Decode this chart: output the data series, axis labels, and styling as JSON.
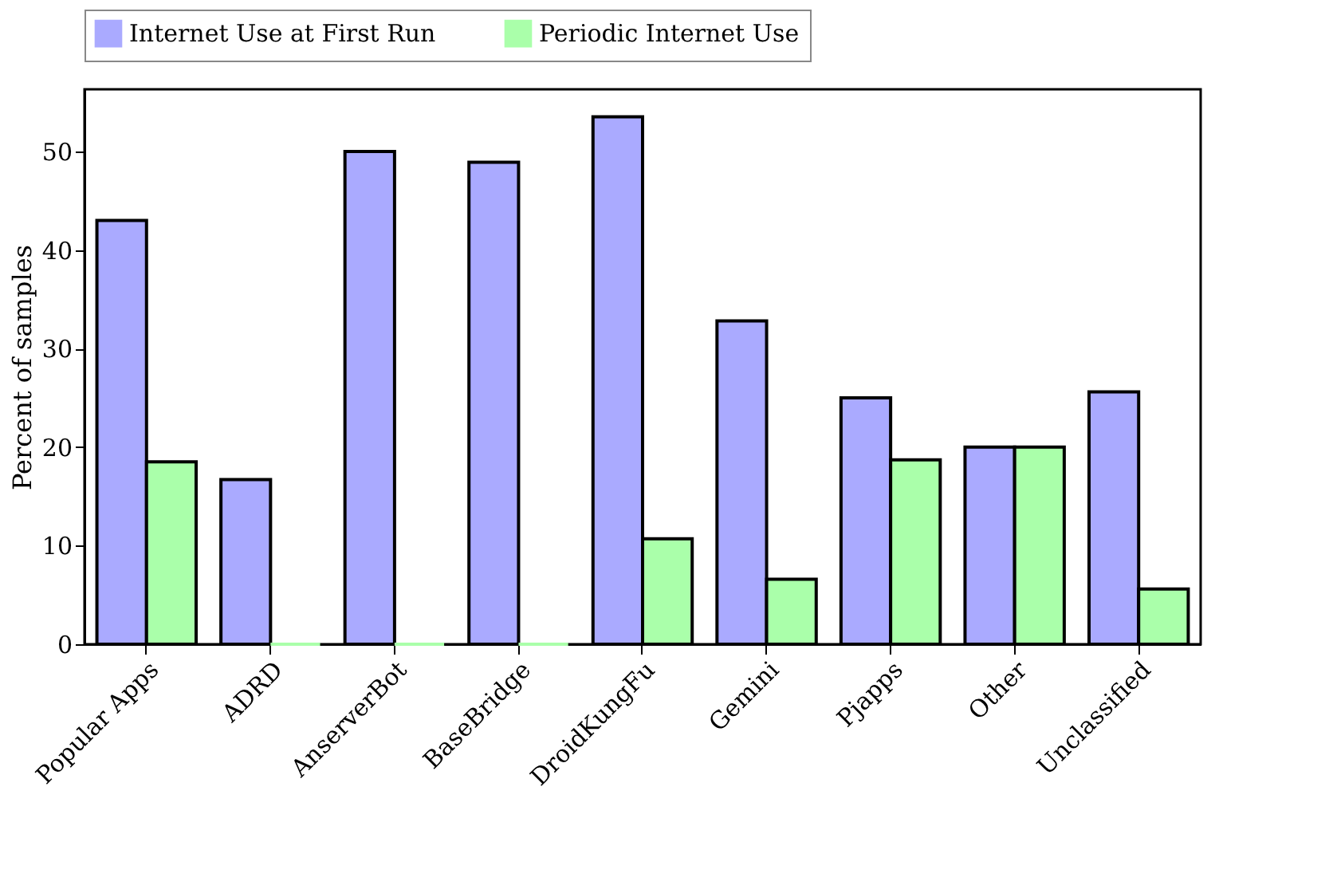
{
  "chart_data": {
    "type": "bar",
    "ylabel": "Percent of samples",
    "categories": [
      "Popular Apps",
      "ADRD",
      "AnserverBot",
      "BaseBridge",
      "DroidKungFu",
      "Gemini",
      "Pjapps",
      "Other",
      "Unclassified"
    ],
    "series": [
      {
        "name": "Internet Use at First Run",
        "color": "#aaaaff",
        "values": [
          43,
          16.7,
          50,
          48.9,
          53.5,
          32.8,
          25,
          20,
          25.6
        ]
      },
      {
        "name": "Periodic Internet Use",
        "color": "#aaffaa",
        "values": [
          18.5,
          0,
          0,
          0,
          10.7,
          6.6,
          18.7,
          20,
          5.6
        ]
      }
    ],
    "ylim": [
      0,
      56.3
    ],
    "yticks": [
      0,
      10,
      20,
      30,
      40,
      50
    ],
    "grid": false,
    "legend": "top"
  }
}
